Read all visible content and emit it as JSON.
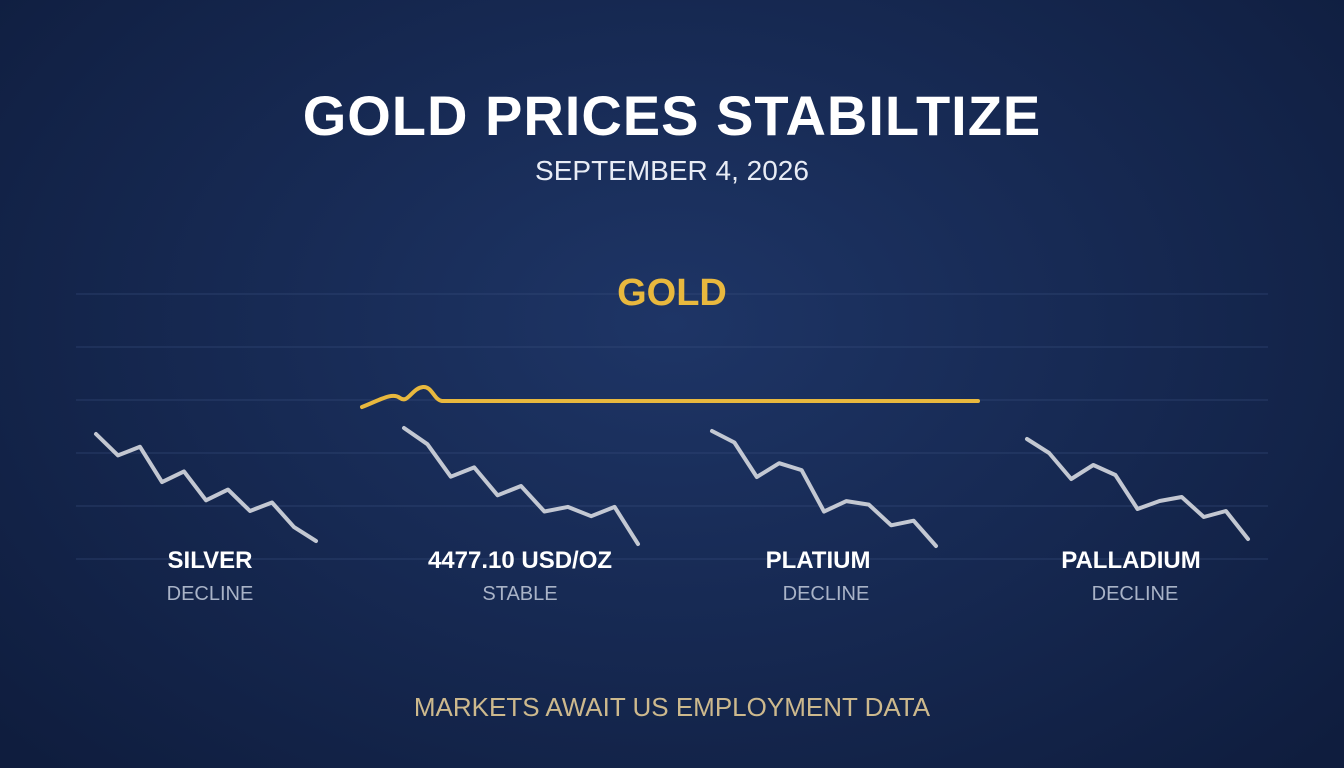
{
  "headline": "GOLD PRICES STABILTIZE",
  "date": "SEPTEMBER 4, 2026",
  "footer": "MARKETS AWAIT US EMPLOYMENT DATA",
  "chart_data": {
    "type": "line",
    "highlight": {
      "name": "GOLD",
      "trend": "stable",
      "value_label": "4477.10 USD/OZ",
      "status": "STABLE",
      "color": "#e8b83e"
    },
    "metals": [
      {
        "name": "SILVER",
        "status": "DECLINE",
        "values": [
          10,
          8,
          8.8,
          5.5,
          6.5,
          3.8,
          4.8,
          2.8,
          3.6,
          1.3,
          0
        ],
        "color": "#d6d9e0"
      },
      {
        "name": "4477.10 USD/OZ",
        "status": "STABLE",
        "values": [
          10,
          8.6,
          5.8,
          6.6,
          4.2,
          5.0,
          2.8,
          3.2,
          2.4,
          3.2,
          0
        ],
        "color": "#d6d9e0"
      },
      {
        "name": "PLATIUM",
        "status": "DECLINE",
        "values": [
          10,
          9.0,
          6.0,
          7.2,
          6.6,
          3.0,
          3.9,
          3.6,
          1.8,
          2.2,
          0
        ],
        "color": "#d6d9e0"
      },
      {
        "name": "PALLADIUM",
        "status": "DECLINE",
        "values": [
          10,
          8.6,
          6.0,
          7.4,
          6.4,
          3.0,
          3.8,
          4.2,
          2.2,
          2.8,
          0
        ],
        "color": "#d6d9e0"
      }
    ],
    "grid": true,
    "legend": "none"
  },
  "colors": {
    "background": "#172a54",
    "gold": "#e8b83e",
    "decline_line": "#d6d9e0",
    "footer_text": "#cdb98d"
  }
}
